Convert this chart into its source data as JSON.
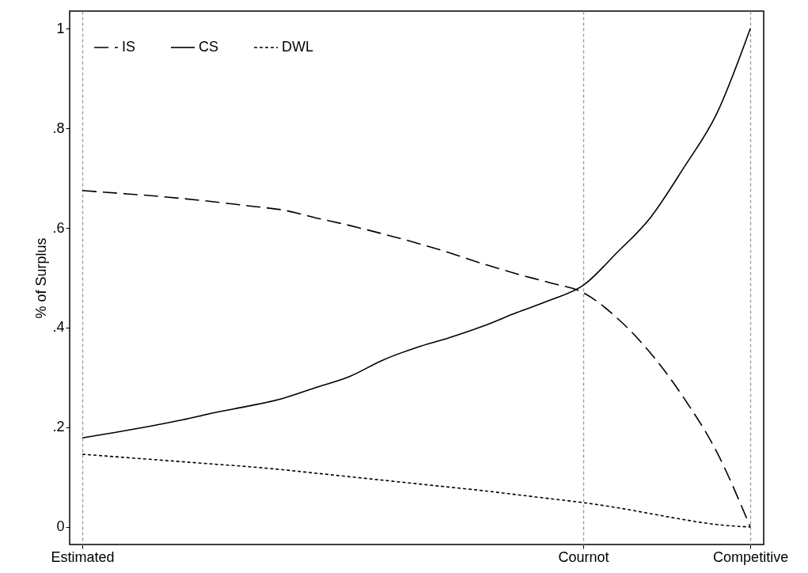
{
  "chart_data": {
    "type": "line",
    "ylabel": "% of Surplus",
    "categories": [
      "Estimated",
      null,
      null,
      null,
      null,
      null,
      null,
      null,
      null,
      null,
      null,
      null,
      null,
      null,
      null,
      "Cournot",
      null,
      null,
      null,
      null,
      "Competitive"
    ],
    "ylim": [
      -0.035,
      1.035
    ],
    "yticks": [
      0,
      {
        "value": 0.2,
        "label": ".2"
      },
      {
        "value": 0.4,
        "label": ".4"
      },
      {
        "value": 0.6,
        "label": ".6"
      },
      {
        "value": 0.8,
        "label": ".8"
      },
      1
    ],
    "grid": "x",
    "legend": "top left",
    "series": [
      {
        "name": "IS",
        "color": "#000000",
        "line_style": "dashed",
        "values": [
          0.675,
          0.67,
          0.665,
          0.659,
          0.652,
          0.644,
          0.636,
          0.62,
          0.605,
          0.588,
          0.57,
          0.55,
          0.528,
          0.508,
          0.49,
          0.47,
          0.42,
          0.35,
          0.26,
          0.15,
          0
        ]
      },
      {
        "name": "CS",
        "color": "#000000",
        "line_style": "solid",
        "values": [
          0.179,
          0.19,
          0.202,
          0.215,
          0.23,
          0.243,
          0.258,
          0.28,
          0.302,
          0.335,
          0.36,
          0.38,
          0.403,
          0.43,
          0.455,
          0.485,
          0.55,
          0.62,
          0.72,
          0.83,
          1
        ]
      },
      {
        "name": "DWL",
        "color": "#000000",
        "line_style": "dotted",
        "values": [
          0.146,
          0.141,
          0.136,
          0.131,
          0.126,
          0.121,
          0.115,
          0.108,
          0.101,
          0.094,
          0.087,
          0.08,
          0.073,
          0.065,
          0.057,
          0.049,
          0.039,
          0.027,
          0.015,
          0.005,
          0
        ]
      }
    ]
  }
}
